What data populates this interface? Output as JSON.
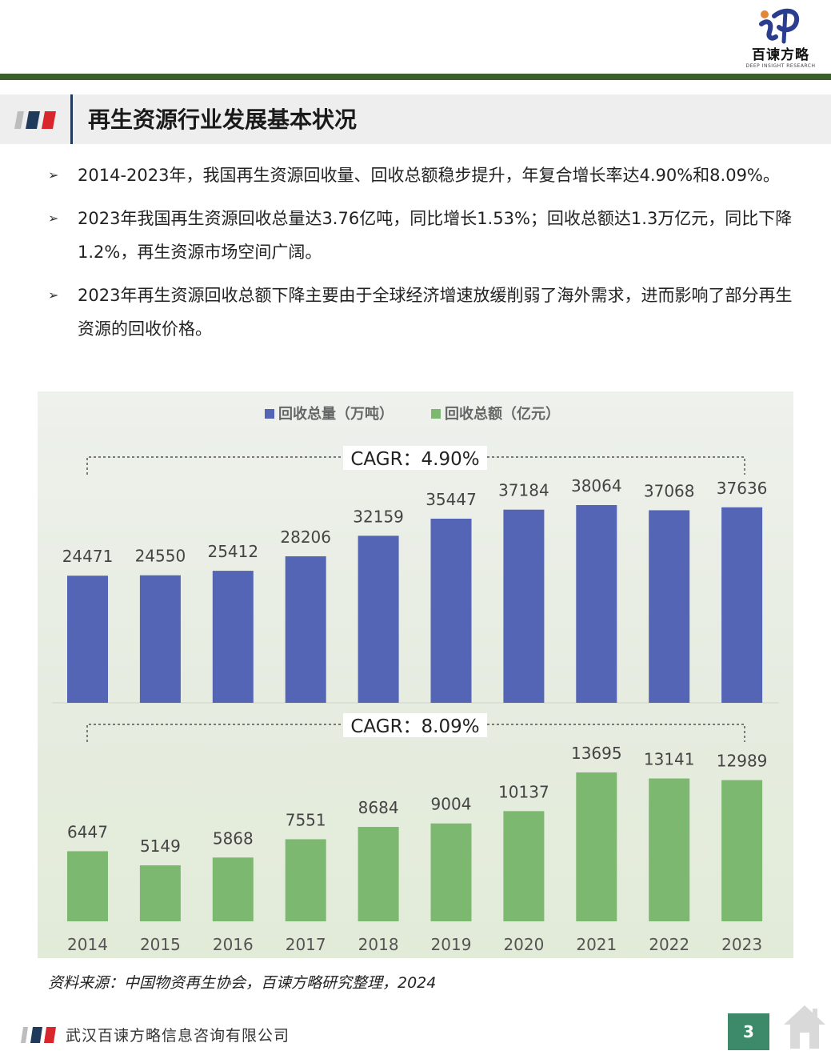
{
  "logo": {
    "brand": "百谏方略",
    "sub": "DEEP INSIGHT RESEARCH"
  },
  "section_title": "再生资源行业发展基本状况",
  "bullets": [
    "2014-2023年，我国再生资源回收量、回收总额稳步提升，年复合增长率达4.90%和8.09%。",
    "2023年我国再生资源回收总量达3.76亿吨，同比增长1.53%；回收总额达1.3万亿元，同比下降1.2%，再生资源市场空间广阔。",
    "2023年再生资源回收总额下降主要由于全球经济增速放缓削弱了海外需求，进而影响了部分再生资源的回收价格。"
  ],
  "chart_data": [
    {
      "type": "bar",
      "legend": "回收总量（万吨）",
      "legend_position": "top-center",
      "color": "#5465b6",
      "categories": [
        "2014",
        "2015",
        "2016",
        "2017",
        "2018",
        "2019",
        "2020",
        "2021",
        "2022",
        "2023"
      ],
      "values": [
        24471,
        24550,
        25412,
        28206,
        32159,
        35447,
        37184,
        38064,
        37068,
        37636
      ],
      "annotation": "CAGR：4.90%",
      "ylim": [
        0,
        38064
      ]
    },
    {
      "type": "bar",
      "legend": "回收总额（亿元）",
      "legend_position": "top-center",
      "color": "#7db870",
      "categories": [
        "2014",
        "2015",
        "2016",
        "2017",
        "2018",
        "2019",
        "2020",
        "2021",
        "2022",
        "2023"
      ],
      "values": [
        6447,
        5149,
        5868,
        7551,
        8684,
        9004,
        10137,
        13695,
        13141,
        12989
      ],
      "annotation": "CAGR：8.09%",
      "ylim": [
        0,
        13695
      ]
    }
  ],
  "source": "资料来源：中国物资再生协会，百谏方略研究整理，2024",
  "footer": {
    "company": "武汉百谏方略信息咨询有限公司",
    "page": "3"
  },
  "colors": {
    "bar_blue": "#5465b6",
    "bar_green": "#7db870",
    "header_green": "#3b5e2b",
    "page_badge": "#3d8a6a"
  }
}
